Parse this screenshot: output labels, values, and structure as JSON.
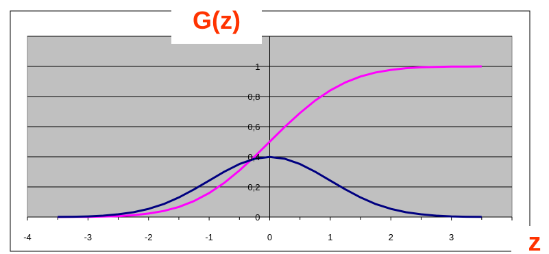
{
  "chart_data": {
    "type": "line",
    "title": "G(z)",
    "xlabel": "z",
    "ylabel": "",
    "xlim": [
      -4,
      4
    ],
    "ylim": [
      0,
      1.2
    ],
    "x_ticks": [
      "-4",
      "-3",
      "-2",
      "-1",
      "0",
      "1",
      "2",
      "3"
    ],
    "x_tick_values": [
      -4,
      -3,
      -2,
      -1,
      0,
      1,
      2,
      3
    ],
    "y_ticks": [
      "0",
      "0,2",
      "0,4",
      "0,6",
      "0,8",
      "1"
    ],
    "y_tick_values": [
      0,
      0.2,
      0.4,
      0.6,
      0.8,
      1
    ],
    "grid": "horizontal",
    "x": [
      -3.5,
      -3.25,
      -3,
      -2.75,
      -2.5,
      -2.25,
      -2,
      -1.75,
      -1.5,
      -1.25,
      -1,
      -0.75,
      -0.5,
      -0.25,
      0,
      0.25,
      0.5,
      0.75,
      1,
      1.25,
      1.5,
      1.75,
      2,
      2.25,
      2.5,
      2.75,
      3,
      3.25,
      3.5
    ],
    "series": [
      {
        "color": "#ff00ff",
        "values": [
          0.0,
          0.001,
          0.001,
          0.003,
          0.006,
          0.012,
          0.023,
          0.04,
          0.067,
          0.106,
          0.159,
          0.227,
          0.309,
          0.401,
          0.5,
          0.599,
          0.691,
          0.773,
          0.841,
          0.894,
          0.933,
          0.96,
          0.977,
          0.988,
          0.994,
          0.997,
          0.999,
          0.999,
          1.0
        ]
      },
      {
        "color": "#000080",
        "values": [
          0.001,
          0.002,
          0.004,
          0.009,
          0.018,
          0.032,
          0.054,
          0.086,
          0.13,
          0.183,
          0.242,
          0.301,
          0.352,
          0.387,
          0.399,
          0.387,
          0.352,
          0.301,
          0.242,
          0.183,
          0.13,
          0.086,
          0.054,
          0.032,
          0.018,
          0.009,
          0.004,
          0.002,
          0.001
        ]
      }
    ],
    "colors": {
      "plot_bg": "#c0c0c0",
      "grid": "#000000",
      "title": "#ff3300"
    }
  }
}
